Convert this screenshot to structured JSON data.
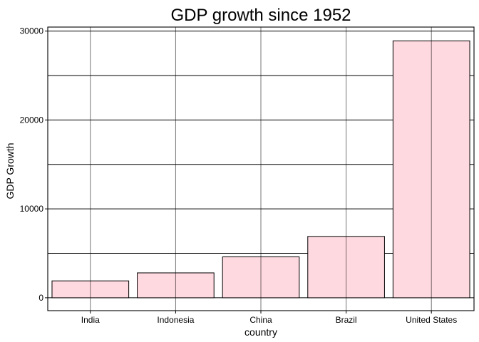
{
  "chart_data": {
    "type": "bar",
    "title": "GDP growth since 1952",
    "xlabel": "country",
    "ylabel": "GDP Growth",
    "categories": [
      "India",
      "Indonesia",
      "China",
      "Brazil",
      "United States"
    ],
    "values": [
      1900,
      2800,
      4600,
      6900,
      28900
    ],
    "ylim": [
      -1450,
      30450
    ],
    "yticks": [
      0,
      10000,
      20000,
      30000
    ],
    "ytick_labels": [
      "0",
      "10000",
      "20000",
      "30000"
    ],
    "minor_gridlines_y": [
      5000,
      15000,
      25000
    ],
    "grid": true,
    "legend": "none",
    "colors": {
      "bar_fill": "#ffd9e0",
      "bar_stroke": "#000000",
      "grid": "#000000",
      "background": "#ffffff"
    }
  }
}
